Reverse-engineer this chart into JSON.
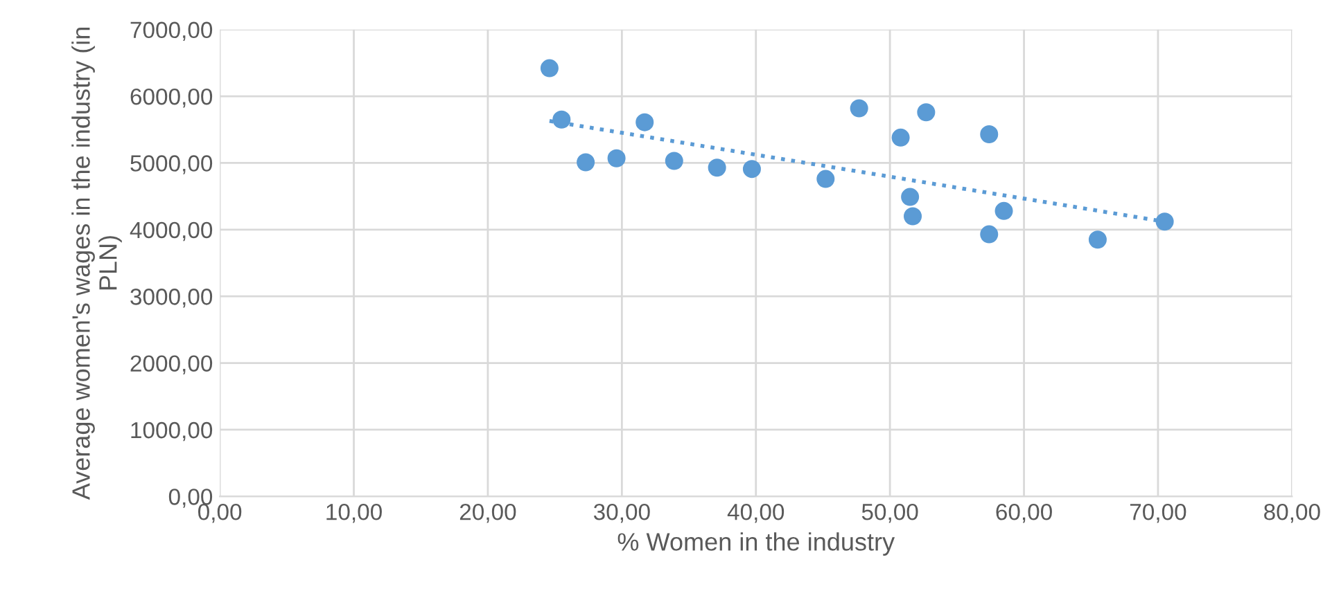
{
  "chart_data": {
    "type": "scatter",
    "xlabel": "% Women in the industry",
    "ylabel": "Average women's wages in the industry (in PLN)",
    "series": [
      {
        "color": "#5b9bd5",
        "marker": "circle",
        "x": [
          24.6,
          25.5,
          27.3,
          29.6,
          31.7,
          33.9,
          37.1,
          39.7,
          45.2,
          47.7,
          50.8,
          52.7,
          51.5,
          51.7,
          57.4,
          58.5,
          57.4,
          65.5,
          70.5
        ],
        "values": [
          6420,
          5650,
          5010,
          5070,
          5610,
          5030,
          4930,
          4910,
          4760,
          5820,
          5380,
          5760,
          4490,
          4200,
          5430,
          4280,
          3930,
          3850,
          4120
        ]
      },
      {
        "type": "line",
        "color": "#5b9bd5",
        "line_style": "dotted",
        "marker": "none",
        "x": [
          24.6,
          70.5
        ],
        "values": [
          5630,
          4120
        ]
      }
    ],
    "xlim": [
      0,
      80
    ],
    "ylim": [
      0,
      7000
    ],
    "xticks": [
      {
        "value": 0,
        "label": "0,00"
      },
      {
        "value": 10,
        "label": "10,00"
      },
      {
        "value": 20,
        "label": "20,00"
      },
      {
        "value": 30,
        "label": "30,00"
      },
      {
        "value": 40,
        "label": "40,00"
      },
      {
        "value": 50,
        "label": "50,00"
      },
      {
        "value": 60,
        "label": "60,00"
      },
      {
        "value": 70,
        "label": "70,00"
      },
      {
        "value": 80,
        "label": "80,00"
      }
    ],
    "yticks": [
      {
        "value": 0,
        "label": "0,00"
      },
      {
        "value": 1000,
        "label": "1000,00"
      },
      {
        "value": 2000,
        "label": "2000,00"
      },
      {
        "value": 3000,
        "label": "3000,00"
      },
      {
        "value": 4000,
        "label": "4000,00"
      },
      {
        "value": 5000,
        "label": "5000,00"
      },
      {
        "value": 6000,
        "label": "6000,00"
      },
      {
        "value": 7000,
        "label": "7000,00"
      }
    ],
    "grid": true
  }
}
